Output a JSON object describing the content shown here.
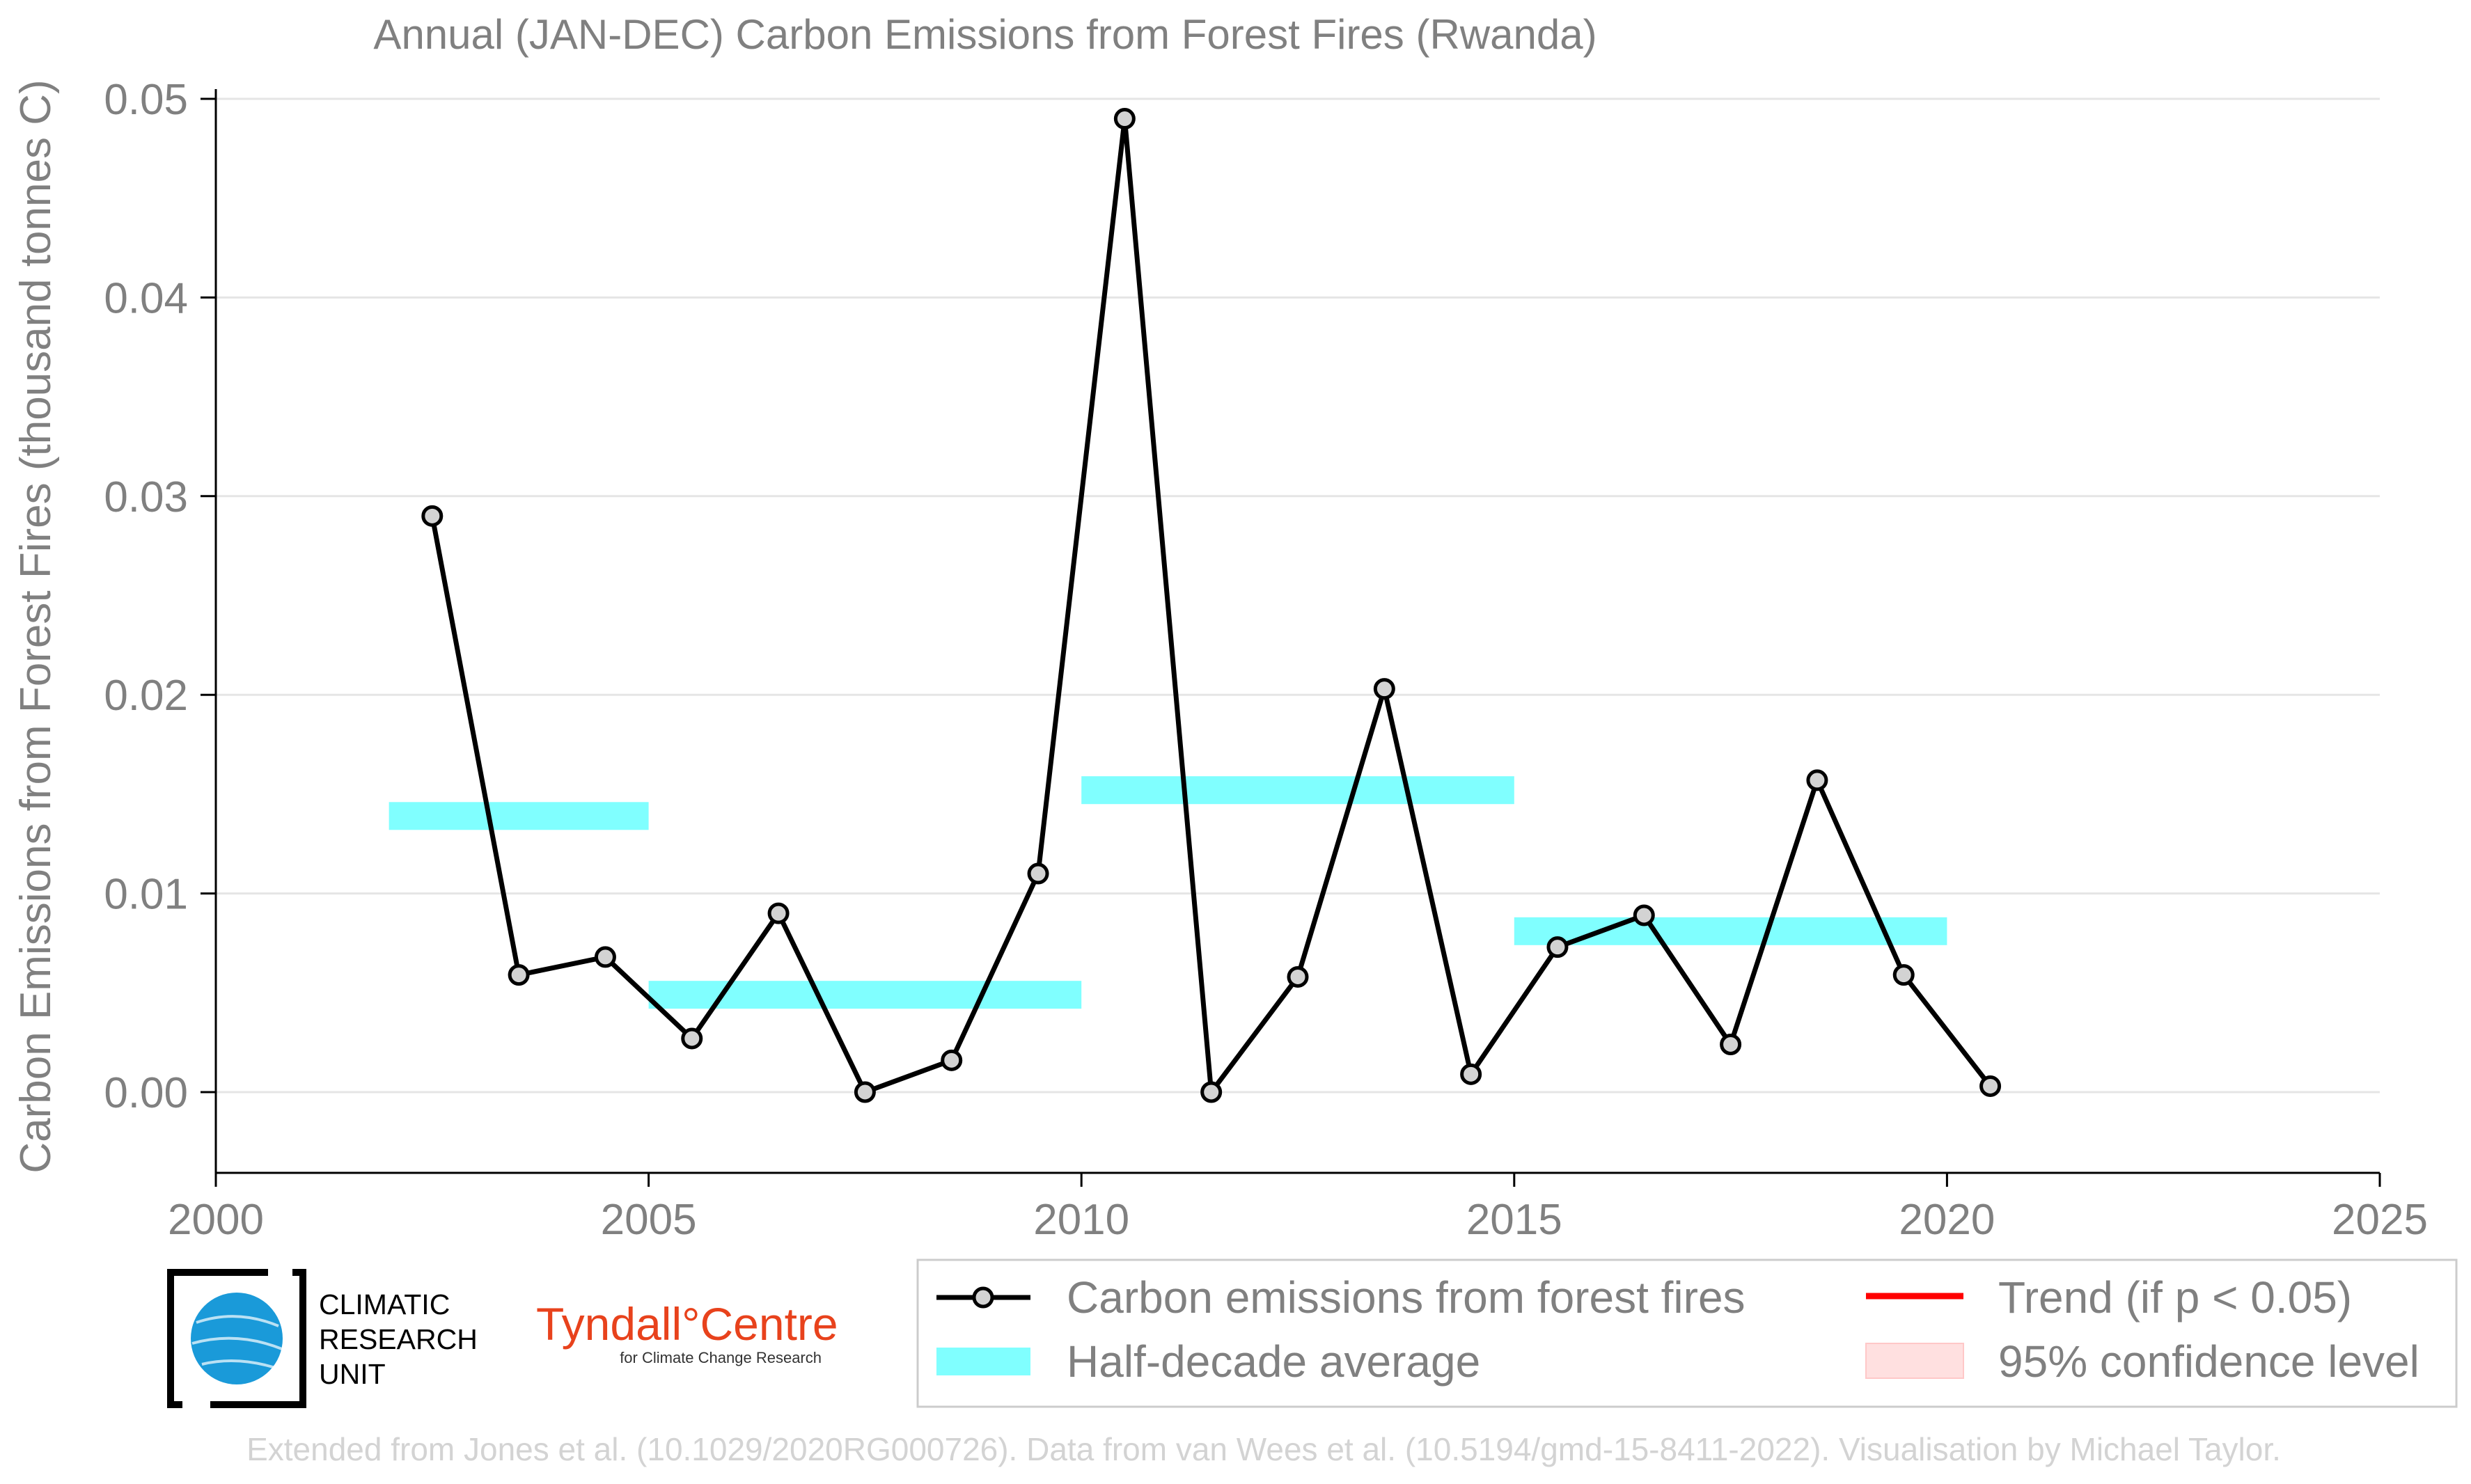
{
  "chart_data": {
    "type": "line",
    "title": "Annual (JAN-DEC) Carbon Emissions from Forest Fires (Rwanda)",
    "xlabel": "",
    "ylabel": "Carbon Emissions from Forest Fires (thousand tonnes C)",
    "xlim": [
      2000,
      2025
    ],
    "ylim": [
      -0.004,
      0.05
    ],
    "x_ticks": [
      2000,
      2005,
      2010,
      2015,
      2020,
      2025
    ],
    "x_tick_labels": [
      "2000",
      "2005",
      "2010",
      "2015",
      "2020",
      "2025"
    ],
    "y_ticks": [
      0.0,
      0.01,
      0.02,
      0.03,
      0.04,
      0.05
    ],
    "y_tick_labels": [
      "0.00",
      "0.01",
      "0.02",
      "0.03",
      "0.04",
      "0.05"
    ],
    "grid": "horizontal",
    "series": [
      {
        "name": "Carbon emissions from forest fires",
        "color": "#000000",
        "marker_fill": "#d3d3d3",
        "x": [
          2002.5,
          2003.5,
          2004.5,
          2005.5,
          2006.5,
          2007.5,
          2008.5,
          2009.5,
          2010.5,
          2011.5,
          2012.5,
          2013.5,
          2014.5,
          2015.5,
          2016.5,
          2017.5,
          2018.5,
          2019.5,
          2020.5
        ],
        "y": [
          0.029,
          0.0059,
          0.0068,
          0.0027,
          0.009,
          0.0,
          0.0016,
          0.011,
          0.049,
          0.0,
          0.0058,
          0.0203,
          0.0009,
          0.0073,
          0.0089,
          0.0024,
          0.0157,
          0.0059,
          0.0003
        ]
      }
    ],
    "half_decade_averages": {
      "name": "Half-decade average",
      "color": "#80ffff",
      "segments": [
        {
          "x_start": 2002,
          "x_end": 2005,
          "y": 0.0139
        },
        {
          "x_start": 2005,
          "x_end": 2010,
          "y": 0.0049
        },
        {
          "x_start": 2010,
          "x_end": 2015,
          "y": 0.0152
        },
        {
          "x_start": 2015,
          "x_end": 2020,
          "y": 0.0081
        }
      ]
    },
    "legend": {
      "placement": "bottom-right",
      "items": [
        {
          "label": "Carbon emissions from forest fires",
          "kind": "line-marker",
          "color": "#000000"
        },
        {
          "label": "Trend (if p < 0.05)",
          "kind": "line",
          "color": "#ff0000"
        },
        {
          "label": "Half-decade average",
          "kind": "band",
          "color": "#80ffff"
        },
        {
          "label": "95% confidence level",
          "kind": "patch",
          "color": "#ffe0e0"
        }
      ]
    }
  },
  "logos": {
    "cru_lines": [
      "CLIMATIC",
      "RESEARCH",
      "UNIT"
    ],
    "tyndall_name": "Tyndall°Centre",
    "tyndall_sub": "for Climate Change Research"
  },
  "credit": "Extended from Jones et al. (10.1029/2020RG000726). Data from van Wees et al. (10.5194/gmd-15-8411-2022). Visualisation by Michael Taylor."
}
